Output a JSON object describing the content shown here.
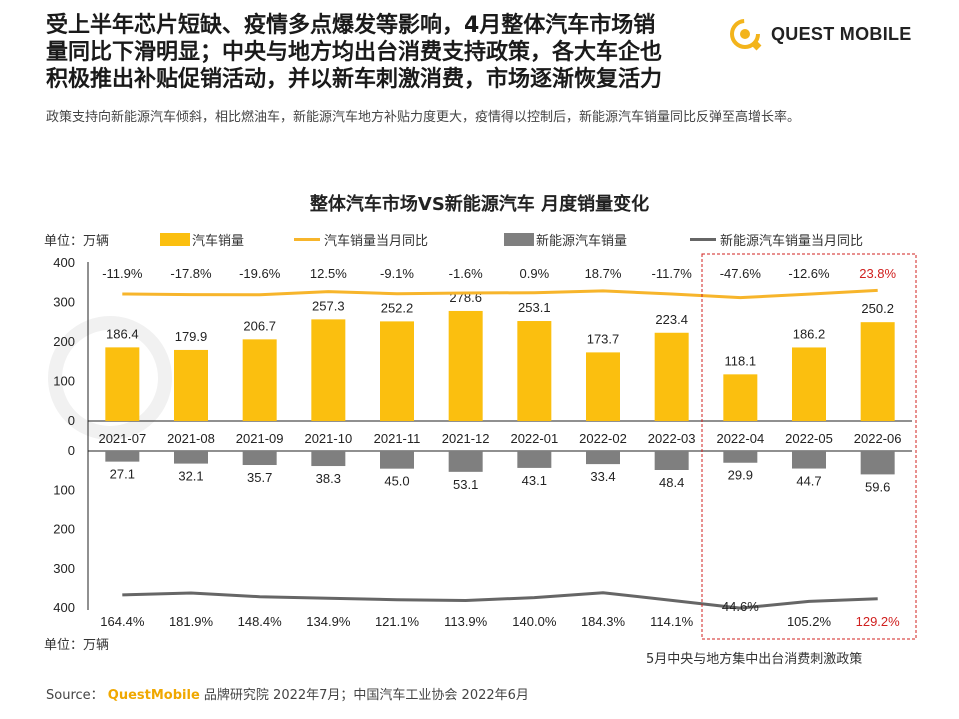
{
  "headline": {
    "line1": "受上半年芯片短缺、疫情多点爆发等影响，4月整体汽车市场销",
    "line2": "量同比下滑明显；中央与地方均出台消费支持政策，各大车企也",
    "line3": "积极推出补贴促销活动，并以新车刺激消费，市场逐渐恢复活力"
  },
  "brand": {
    "name": "QUEST MOBILE",
    "icon": "questmobile-logo-icon"
  },
  "subtitle": "政策支持向新能源汽车倾斜，相比燃油车，新能源汽车地方补贴力度更大，疫情得以控制后，新能源汽车销量同比反弹至高增长率。",
  "unit_top": "单位：万辆",
  "unit_bottom": "单位：万辆",
  "note": "5月中央与地方集中出台消费刺激政策",
  "source": {
    "prefix": "Source：",
    "brand": "QuestMobile",
    "rest": "品牌研究院 2022年7月；中国汽车工业协会 2022年6月"
  },
  "colors": {
    "total_bar": "#fbbf0f",
    "total_line": "#f7b52b",
    "nev_bar": "#7f7f7f",
    "nev_line": "#666666",
    "highlight_box": "#d0201f",
    "highlight_text": "#d0201f"
  },
  "chart_data": {
    "type": "bar",
    "title": "整体汽车市场VS新能源汽车 月度销量变化",
    "categories": [
      "2021-07",
      "2021-08",
      "2021-09",
      "2021-10",
      "2021-11",
      "2021-12",
      "2022-01",
      "2022-02",
      "2022-03",
      "2022-04",
      "2022-05",
      "2022-06"
    ],
    "series": [
      {
        "name": "汽车销量",
        "kind": "bar",
        "values": [
          186.4,
          179.9,
          206.7,
          257.3,
          252.2,
          278.6,
          253.1,
          173.7,
          223.4,
          118.1,
          186.2,
          250.2
        ]
      },
      {
        "name": "汽车销量当月同比",
        "kind": "line",
        "value_labels": [
          "-11.9%",
          "-17.8%",
          "-19.6%",
          "12.5%",
          "-9.1%",
          "-1.6%",
          "0.9%",
          "18.7%",
          "-11.7%",
          "-47.6%",
          "-12.6%",
          "23.8%"
        ],
        "values": [
          -11.9,
          -17.8,
          -19.6,
          12.5,
          -9.1,
          -1.6,
          0.9,
          18.7,
          -11.7,
          -47.6,
          -12.6,
          23.8
        ]
      },
      {
        "name": "新能源汽车销量",
        "kind": "bar",
        "values": [
          27.1,
          32.1,
          35.7,
          38.3,
          45.0,
          53.1,
          43.1,
          33.4,
          48.4,
          29.9,
          44.7,
          59.6
        ],
        "value_labels": [
          "27.1",
          "32.1",
          "35.7",
          "38.3",
          "45.0",
          "53.1",
          "43.1",
          "33.4",
          "48.4",
          "29.9",
          "44.7",
          "59.6"
        ]
      },
      {
        "name": "新能源汽车销量当月同比",
        "kind": "line",
        "value_labels": [
          "164.4%",
          "181.9%",
          "148.4%",
          "134.9%",
          "121.1%",
          "113.9%",
          "140.0%",
          "184.3%",
          "114.1%",
          "44.6%",
          "105.2%",
          "129.2%"
        ],
        "values": [
          164.4,
          181.9,
          148.4,
          134.9,
          121.1,
          113.9,
          140.0,
          184.3,
          114.1,
          44.6,
          105.2,
          129.2
        ]
      }
    ],
    "top_axis": {
      "ylim": [
        0,
        400
      ],
      "ticks": [
        "0",
        "100",
        "200",
        "300",
        "400"
      ]
    },
    "bottom_axis": {
      "ylim": [
        0,
        400
      ],
      "ticks": [
        "0",
        "100",
        "200",
        "300",
        "400"
      ],
      "inverted": true
    },
    "highlight": {
      "from_category": "2022-04",
      "to_category": "2022-06",
      "red_labels": [
        "23.8%",
        "129.2%"
      ]
    },
    "legend_position": "top",
    "grid": false
  }
}
